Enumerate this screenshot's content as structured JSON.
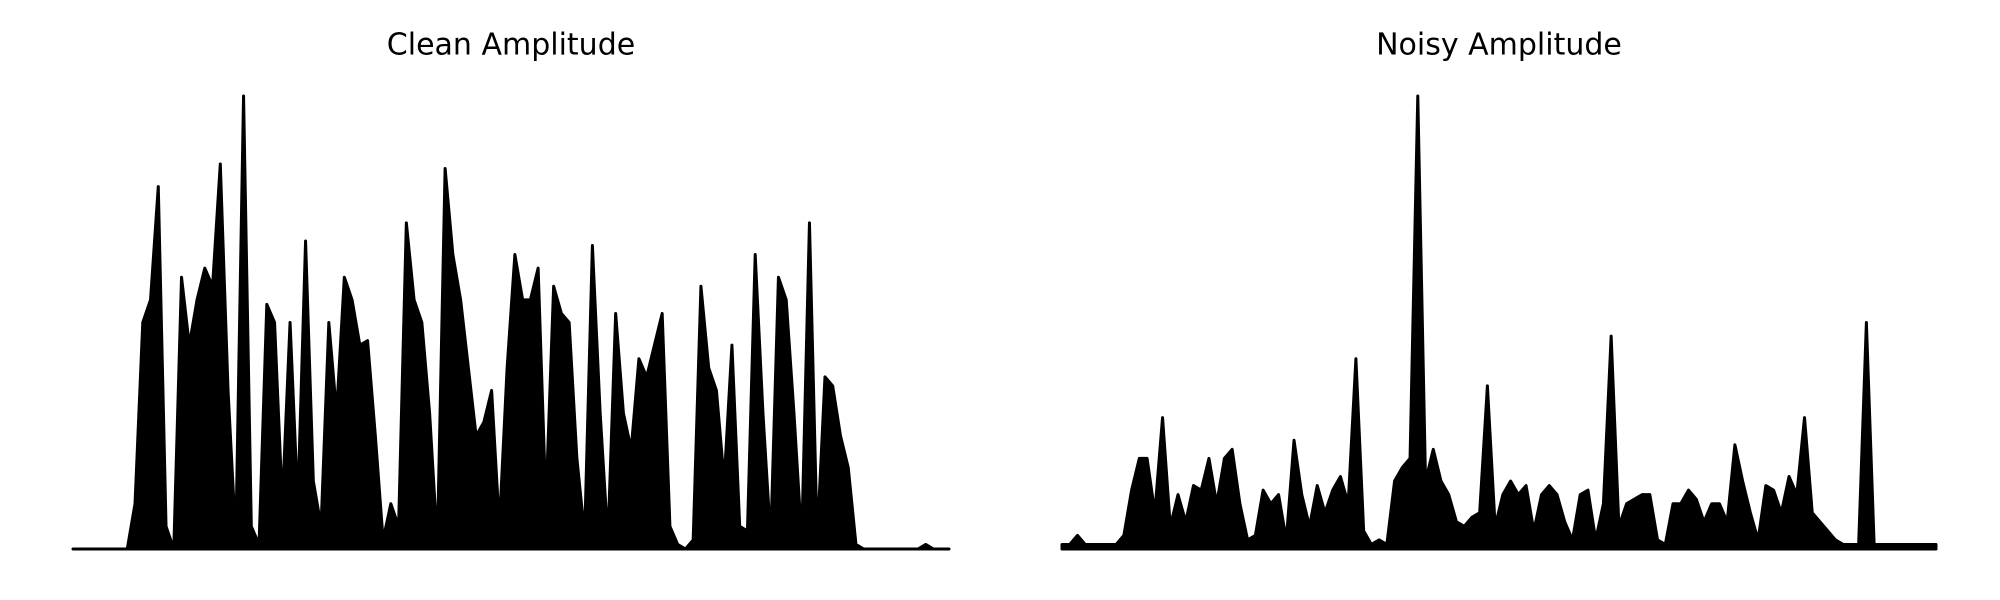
{
  "chart_data": [
    {
      "type": "area",
      "title": "Clean Amplitude",
      "color": "#000000",
      "ylim": [
        0,
        1
      ],
      "values": [
        0,
        0,
        0,
        0,
        0,
        0,
        0,
        0,
        0.1,
        0.5,
        0.55,
        0.8,
        0.05,
        0,
        0.6,
        0.45,
        0.55,
        0.62,
        0.58,
        0.85,
        0.35,
        0.02,
        1.0,
        0.05,
        0.01,
        0.54,
        0.5,
        0.1,
        0.5,
        0.1,
        0.68,
        0.15,
        0.05,
        0.5,
        0.3,
        0.6,
        0.55,
        0.45,
        0.46,
        0.25,
        0.02,
        0.1,
        0.05,
        0.72,
        0.55,
        0.5,
        0.3,
        0.01,
        0.84,
        0.65,
        0.55,
        0.4,
        0.25,
        0.28,
        0.35,
        0.05,
        0.4,
        0.65,
        0.55,
        0.55,
        0.62,
        0.1,
        0.58,
        0.52,
        0.5,
        0.2,
        0.03,
        0.67,
        0.3,
        0.02,
        0.52,
        0.3,
        0.22,
        0.42,
        0.38,
        0.45,
        0.52,
        0.05,
        0.01,
        0,
        0.02,
        0.58,
        0.4,
        0.35,
        0.15,
        0.45,
        0.05,
        0.04,
        0.65,
        0.3,
        0.02,
        0.6,
        0.55,
        0.3,
        0.02,
        0.72,
        0.02,
        0.38,
        0.36,
        0.25,
        0.18,
        0.01,
        0,
        0,
        0,
        0,
        0,
        0,
        0,
        0,
        0.01,
        0,
        0,
        0
      ]
    },
    {
      "type": "area",
      "title": "Noisy Amplitude",
      "color": "#000000",
      "ylim": [
        0,
        1
      ],
      "values": [
        0.01,
        0.01,
        0.03,
        0.01,
        0.01,
        0.01,
        0.01,
        0.01,
        0.03,
        0.13,
        0.2,
        0.2,
        0.08,
        0.29,
        0.05,
        0.12,
        0.06,
        0.14,
        0.13,
        0.2,
        0.1,
        0.2,
        0.22,
        0.1,
        0.02,
        0.03,
        0.13,
        0.1,
        0.12,
        0.02,
        0.24,
        0.12,
        0.05,
        0.14,
        0.08,
        0.13,
        0.16,
        0.1,
        0.42,
        0.04,
        0.01,
        0.02,
        0.01,
        0.15,
        0.18,
        0.2,
        1.0,
        0.15,
        0.22,
        0.15,
        0.12,
        0.06,
        0.05,
        0.07,
        0.08,
        0.36,
        0.05,
        0.12,
        0.15,
        0.12,
        0.14,
        0.04,
        0.12,
        0.14,
        0.12,
        0.06,
        0.02,
        0.12,
        0.13,
        0.02,
        0.1,
        0.47,
        0.05,
        0.1,
        0.11,
        0.12,
        0.12,
        0.02,
        0.01,
        0.1,
        0.1,
        0.13,
        0.11,
        0.06,
        0.1,
        0.1,
        0.06,
        0.23,
        0.15,
        0.08,
        0.02,
        0.14,
        0.13,
        0.08,
        0.16,
        0.12,
        0.29,
        0.08,
        0.06,
        0.04,
        0.02,
        0.01,
        0.01,
        0.01,
        0.5,
        0.01,
        0.01,
        0.01,
        0.01,
        0.01,
        0.01,
        0.01,
        0.01,
        0.01
      ]
    }
  ]
}
